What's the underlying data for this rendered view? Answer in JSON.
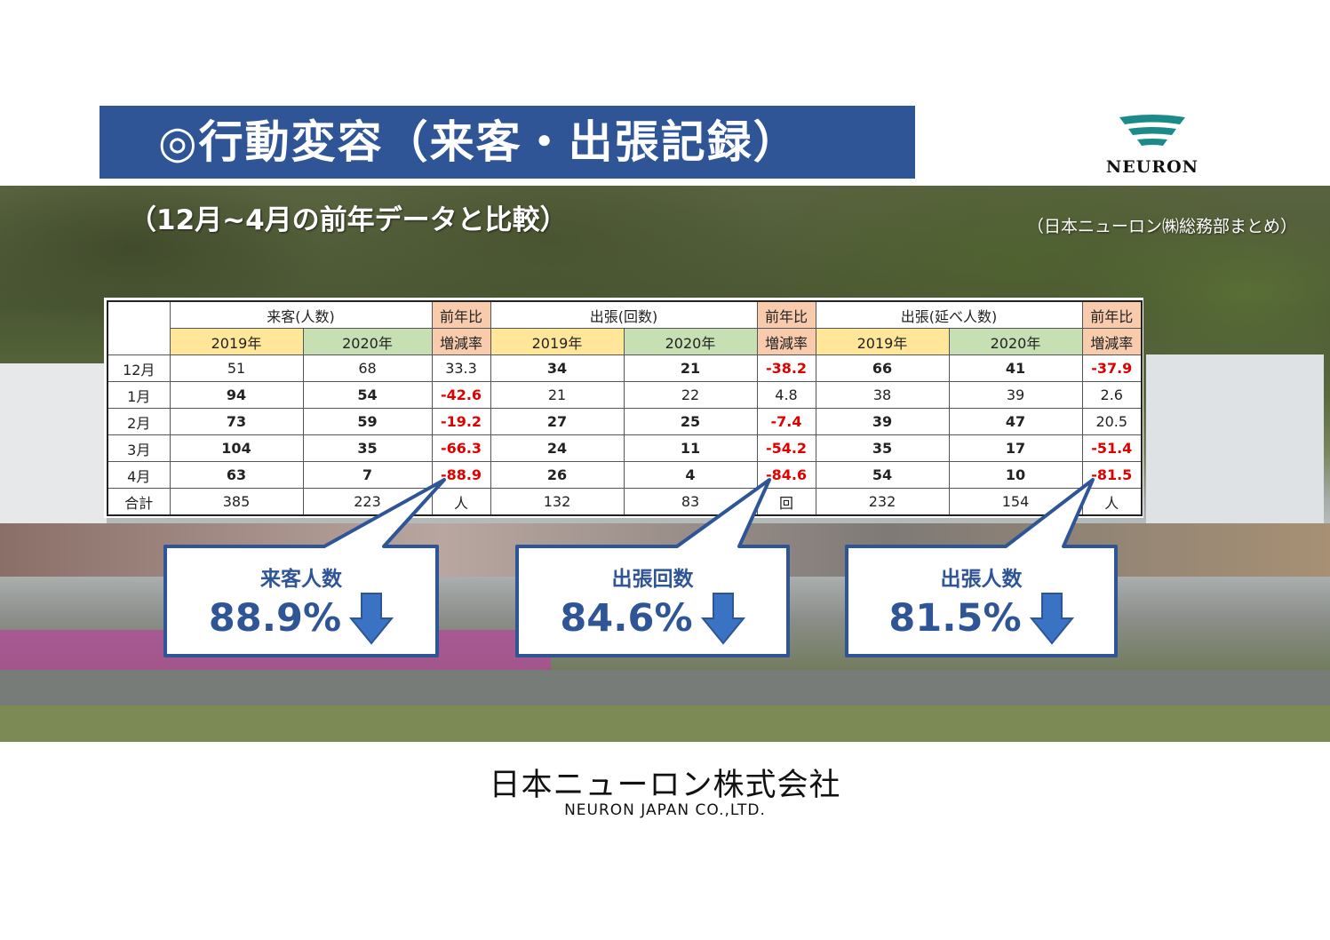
{
  "title": "◎行動変容（来客・出張記録）",
  "logo": {
    "text": "NEURON",
    "colors": {
      "stripes": "#1a8a8a"
    }
  },
  "subtitle": "（12月~4月の前年データと比較）",
  "note": "（日本ニューロン㈱総務部まとめ）",
  "table": {
    "groups": [
      "来客(人数)",
      "出張(回数)",
      "出張(延べ人数)"
    ],
    "rate_header_top": "前年比",
    "rate_header_bottom": "増減率",
    "year1": "2019年",
    "year2": "2020年",
    "rows": [
      {
        "month": "12月",
        "v": [
          "51",
          "68",
          "33.3",
          "34",
          "21",
          "-38.2",
          "66",
          "41",
          "-37.9"
        ]
      },
      {
        "month": "1月",
        "v": [
          "94",
          "54",
          "-42.6",
          "21",
          "22",
          "4.8",
          "38",
          "39",
          "2.6"
        ]
      },
      {
        "month": "2月",
        "v": [
          "73",
          "59",
          "-19.2",
          "27",
          "25",
          "-7.4",
          "39",
          "47",
          "20.5"
        ]
      },
      {
        "month": "3月",
        "v": [
          "104",
          "35",
          "-66.3",
          "24",
          "11",
          "-54.2",
          "35",
          "17",
          "-51.4"
        ]
      },
      {
        "month": "4月",
        "v": [
          "63",
          "7",
          "-88.9",
          "26",
          "4",
          "-84.6",
          "54",
          "10",
          "-81.5"
        ]
      }
    ],
    "total": {
      "label": "合計",
      "v": [
        "385",
        "223",
        "人",
        "132",
        "83",
        "回",
        "232",
        "154",
        "人"
      ]
    }
  },
  "callouts": [
    {
      "label": "来客人数",
      "value": "88.9%"
    },
    {
      "label": "出張回数",
      "value": "84.6%"
    },
    {
      "label": "出張人数",
      "value": "81.5%"
    }
  ],
  "footer": {
    "jp": "日本ニューロン株式会社",
    "en": "NEURON  JAPAN CO.,LTD."
  },
  "colors": {
    "title_bg": "#2f5597",
    "callout_text": "#2f5597",
    "negative": "#e00000"
  }
}
